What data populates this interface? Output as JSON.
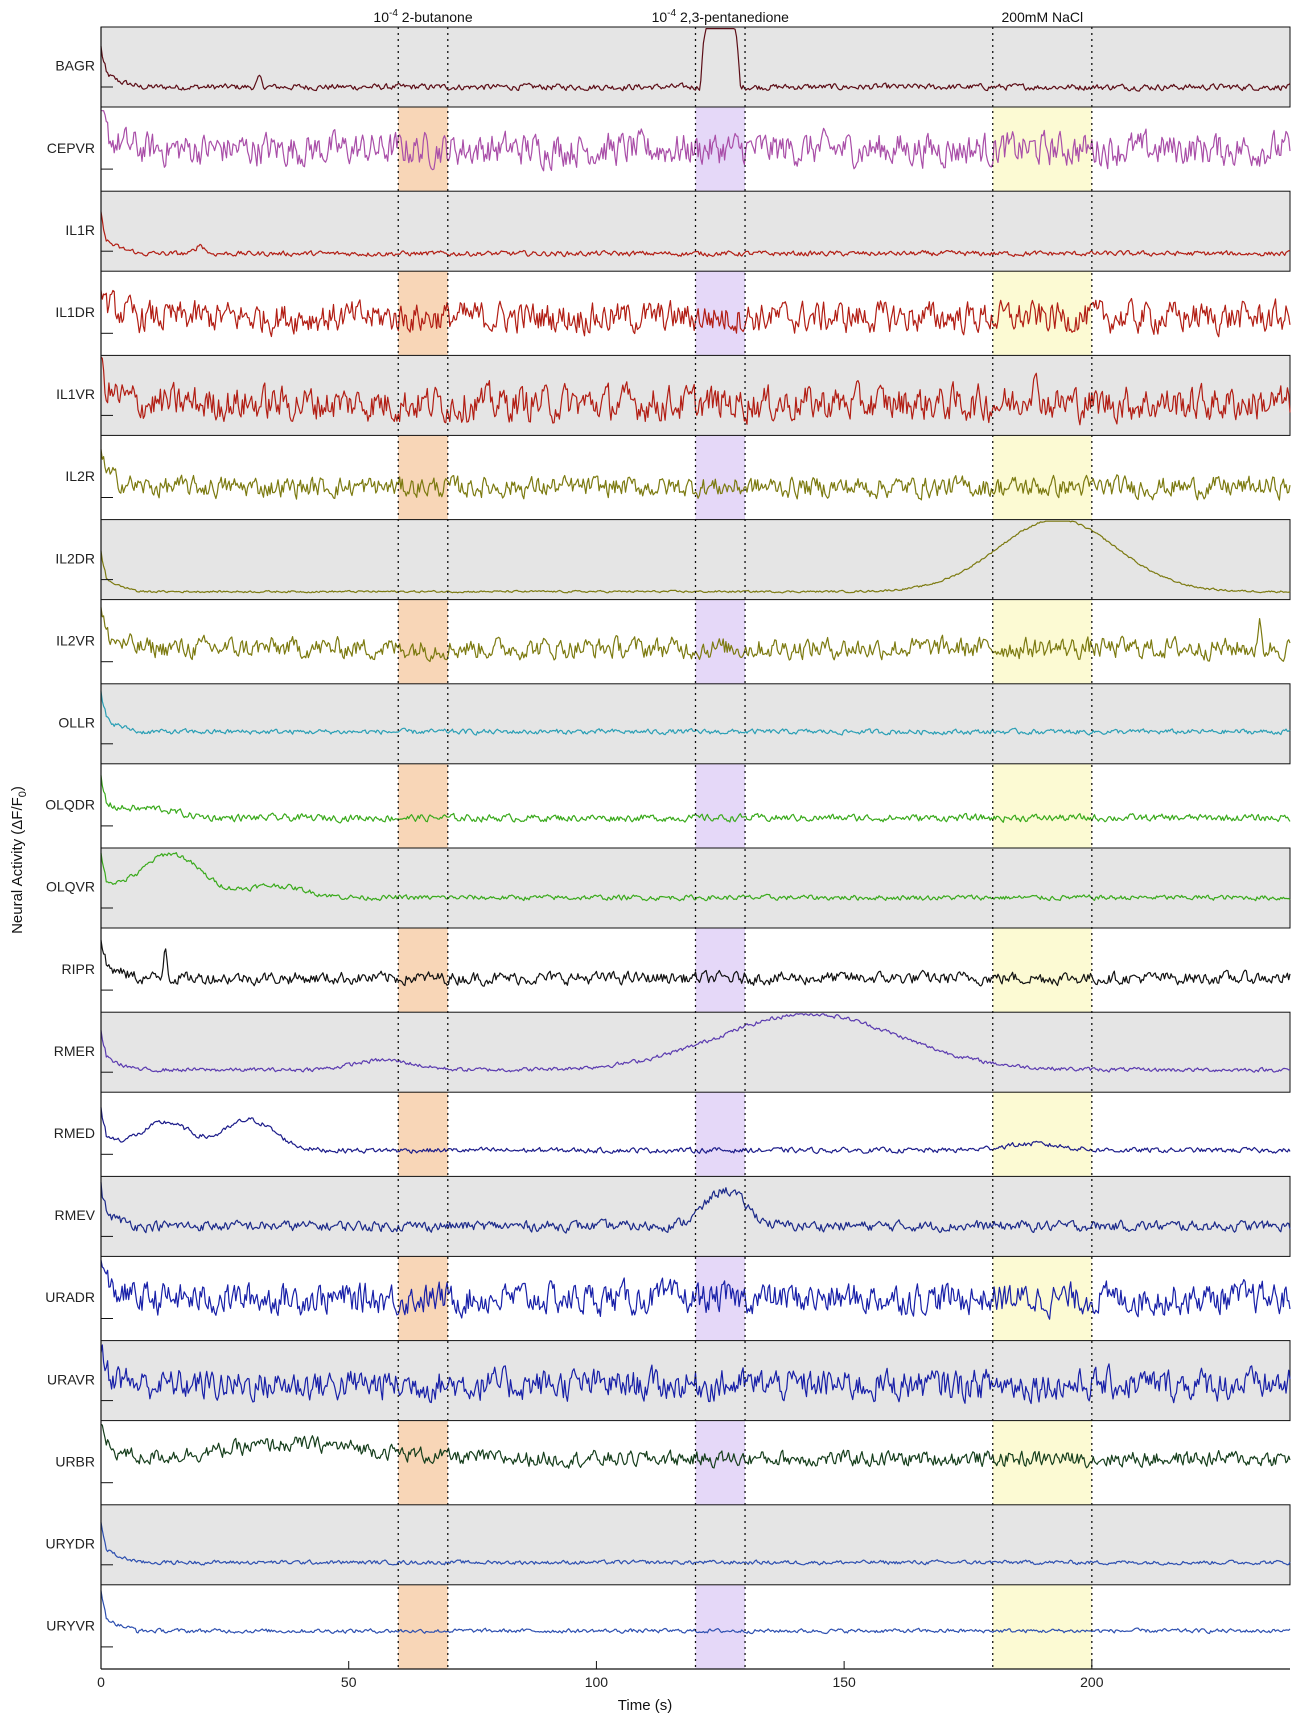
{
  "chart_data": {
    "type": "line",
    "title": "",
    "xlabel": "Time (s)",
    "ylabel": "Neural Activity (ΔF/F",
    "ylabel_sub": "0",
    "ylabel_close": ")",
    "xlim": [
      0,
      240
    ],
    "xticks": [
      0,
      50,
      100,
      150,
      200
    ],
    "xtick_labels": [
      "0",
      "50",
      "100",
      "150",
      "200"
    ],
    "stimuli": [
      {
        "name": "2-butanone",
        "prefix": "10",
        "exp": "-4",
        "start": 60,
        "end": 70,
        "color": "#f6c89f"
      },
      {
        "name": "2,3-pentanedione",
        "prefix": "10",
        "exp": "-4",
        "start": 120,
        "end": 130,
        "color": "#dccbf5"
      },
      {
        "name": "200mM NaCl",
        "prefix": "",
        "exp": "",
        "start": 180,
        "end": 200,
        "color": "#fbf8c4"
      }
    ],
    "series": [
      {
        "name": "BAGR",
        "color": "#5c0d16",
        "shaded": true,
        "baseline": 0.75,
        "noise": 0.06,
        "events": [
          {
            "t": 125,
            "amp": 0.85,
            "w": 4,
            "shape": "plateau"
          },
          {
            "t": 32,
            "amp": 0.12,
            "w": 1,
            "shape": "spike"
          }
        ]
      },
      {
        "name": "CEPVR",
        "color": "#a94ea8",
        "shaded": false,
        "baseline": 0.5,
        "noise": 0.32,
        "events": []
      },
      {
        "name": "IL1R",
        "color": "#b21e14",
        "shaded": true,
        "baseline": 0.78,
        "noise": 0.05,
        "events": [
          {
            "t": 20,
            "amp": 0.12,
            "w": 2,
            "shape": "spike"
          }
        ]
      },
      {
        "name": "IL1DR",
        "color": "#b21e14",
        "shaded": false,
        "baseline": 0.55,
        "noise": 0.3,
        "events": []
      },
      {
        "name": "IL1VR",
        "color": "#b21e14",
        "shaded": true,
        "baseline": 0.6,
        "noise": 0.34,
        "events": [
          {
            "t": 188,
            "amp": 0.25,
            "w": 3,
            "shape": "spike"
          }
        ]
      },
      {
        "name": "IL2R",
        "color": "#7c7a10",
        "shaded": false,
        "baseline": 0.62,
        "noise": 0.2,
        "events": []
      },
      {
        "name": "IL2DR",
        "color": "#7c7a10",
        "shaded": true,
        "baseline": 0.9,
        "noise": 0.02,
        "events": [
          {
            "t": 193,
            "amp": 0.9,
            "w": 12,
            "shape": "bump"
          }
        ]
      },
      {
        "name": "IL2VR",
        "color": "#7c7a10",
        "shaded": false,
        "baseline": 0.58,
        "noise": 0.2,
        "events": [
          {
            "t": 234,
            "amp": 0.4,
            "w": 0.5,
            "shape": "spike"
          }
        ]
      },
      {
        "name": "OLLR",
        "color": "#2a9fb5",
        "shaded": true,
        "baseline": 0.6,
        "noise": 0.05,
        "events": []
      },
      {
        "name": "OLQDR",
        "color": "#3aaa1c",
        "shaded": false,
        "baseline": 0.65,
        "noise": 0.07,
        "events": [
          {
            "t": 10,
            "amp": 0.12,
            "w": 5,
            "shape": "bump"
          }
        ]
      },
      {
        "name": "OLQVR",
        "color": "#3aaa1c",
        "shaded": true,
        "baseline": 0.62,
        "noise": 0.05,
        "events": [
          {
            "t": 14,
            "amp": 0.55,
            "w": 6,
            "shape": "bump"
          },
          {
            "t": 35,
            "amp": 0.15,
            "w": 6,
            "shape": "bump"
          }
        ]
      },
      {
        "name": "RIPR",
        "color": "#111111",
        "shaded": false,
        "baseline": 0.6,
        "noise": 0.12,
        "events": [
          {
            "t": 13,
            "amp": 0.45,
            "w": 0.8,
            "shape": "spike"
          }
        ]
      },
      {
        "name": "RMER",
        "color": "#5b3bb0",
        "shaded": true,
        "baseline": 0.72,
        "noise": 0.04,
        "events": [
          {
            "t": 57,
            "amp": 0.12,
            "w": 6,
            "shape": "bump"
          },
          {
            "t": 143,
            "amp": 0.7,
            "w": 18,
            "shape": "bump"
          }
        ]
      },
      {
        "name": "RMED",
        "color": "#1c1c8a",
        "shaded": false,
        "baseline": 0.7,
        "noise": 0.05,
        "events": [
          {
            "t": 13,
            "amp": 0.35,
            "w": 5,
            "shape": "bump"
          },
          {
            "t": 30,
            "amp": 0.38,
            "w": 5,
            "shape": "bump"
          },
          {
            "t": 188,
            "amp": 0.08,
            "w": 6,
            "shape": "bump"
          }
        ]
      },
      {
        "name": "RMEV",
        "color": "#1c2a8a",
        "shaded": true,
        "baseline": 0.62,
        "noise": 0.1,
        "events": [
          {
            "t": 126,
            "amp": 0.45,
            "w": 4,
            "shape": "bump"
          }
        ]
      },
      {
        "name": "URADR",
        "color": "#1820a8",
        "shaded": false,
        "baseline": 0.5,
        "noise": 0.3,
        "events": []
      },
      {
        "name": "URAVR",
        "color": "#1820a8",
        "shaded": true,
        "baseline": 0.55,
        "noise": 0.3,
        "events": []
      },
      {
        "name": "URBR",
        "color": "#163e1c",
        "shaded": false,
        "baseline": 0.45,
        "noise": 0.15,
        "events": [
          {
            "t": 40,
            "amp": 0.18,
            "w": 15,
            "shape": "bump"
          }
        ]
      },
      {
        "name": "URYDR",
        "color": "#2d4fb0",
        "shaded": true,
        "baseline": 0.72,
        "noise": 0.04,
        "events": []
      },
      {
        "name": "URYVR",
        "color": "#2d4fb0",
        "shaded": false,
        "baseline": 0.55,
        "noise": 0.04,
        "events": []
      }
    ]
  }
}
